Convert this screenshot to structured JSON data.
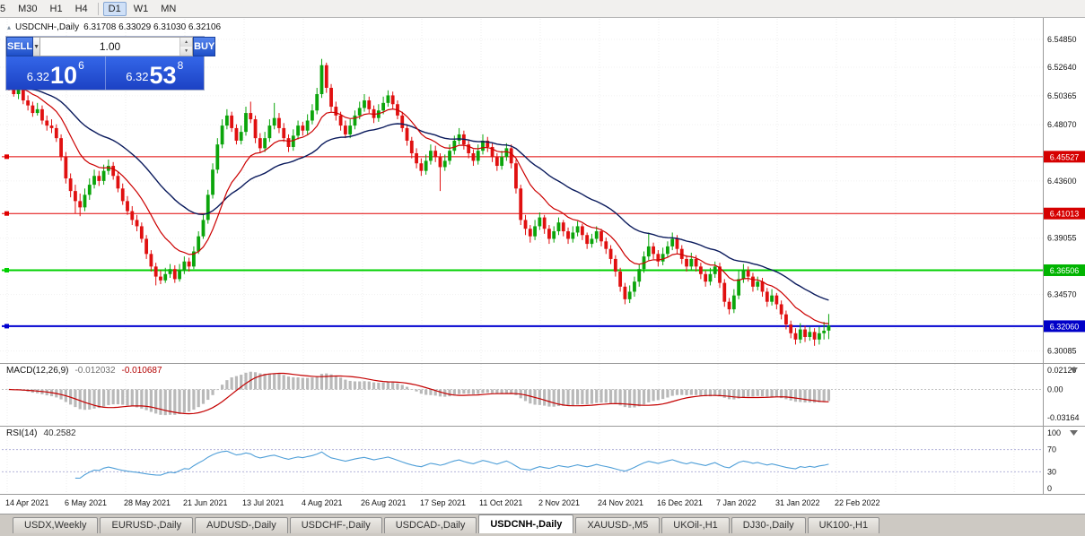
{
  "toolbar": {
    "timeframes": [
      "5",
      "M30",
      "H1",
      "H4",
      "D1",
      "W1",
      "MN"
    ],
    "active": "D1",
    "separator_before": "D1"
  },
  "chart": {
    "header": {
      "symbol": "USDCNH-,Daily",
      "ohlc": "6.31708 6.33029 6.31030 6.32106"
    },
    "price_axis": {
      "labels": [
        {
          "text": "6.54850",
          "value": 6.5485
        },
        {
          "text": "6.52640",
          "value": 6.5264
        },
        {
          "text": "6.50365",
          "value": 6.50365
        },
        {
          "text": "6.48070",
          "value": 6.4807
        },
        {
          "text": "6.43600",
          "value": 6.436
        },
        {
          "text": "6.39055",
          "value": 6.39055
        },
        {
          "text": "6.34570",
          "value": 6.3457
        },
        {
          "text": "6.30085",
          "value": 6.30085
        }
      ],
      "badges": [
        {
          "text": "6.45527",
          "value": 6.45527,
          "color": "#d60000"
        },
        {
          "text": "6.41013",
          "value": 6.41013,
          "color": "#d60000"
        },
        {
          "text": "6.36506",
          "value": 6.36506,
          "color": "#00b400"
        },
        {
          "text": "6.32060",
          "value": 6.3206,
          "color": "#0000c8"
        }
      ]
    },
    "hlines": [
      {
        "value": 6.45527,
        "color": "#e00000",
        "width": 1
      },
      {
        "value": 6.41013,
        "color": "#e00000",
        "width": 1
      },
      {
        "value": 6.36506,
        "color": "#00d000",
        "width": 2
      },
      {
        "value": 6.3206,
        "color": "#0000d0",
        "width": 2
      }
    ],
    "date_axis": [
      "14 Apr 2021",
      "6 May 2021",
      "28 May 2021",
      "21 Jun 2021",
      "13 Jul 2021",
      "4 Aug 2021",
      "26 Aug 2021",
      "17 Sep 2021",
      "11 Oct 2021",
      "2 Nov 2021",
      "24 Nov 2021",
      "16 Dec 2021",
      "7 Jan 2022",
      "31 Jan 2022",
      "22 Feb 2022"
    ],
    "colors": {
      "up": "#0ba50b",
      "down": "#e01010",
      "ma_fast": "#cc0000",
      "ma_slow": "#0a1a5c"
    },
    "candles": [
      [
        6.515,
        6.518,
        6.508,
        6.512
      ],
      [
        6.512,
        6.515,
        6.503,
        6.505
      ],
      [
        6.505,
        6.513,
        6.501,
        6.509
      ],
      [
        6.509,
        6.512,
        6.497,
        6.5
      ],
      [
        6.5,
        6.504,
        6.492,
        6.496
      ],
      [
        6.496,
        6.499,
        6.487,
        6.49
      ],
      [
        6.49,
        6.498,
        6.488,
        6.493
      ],
      [
        6.493,
        6.496,
        6.481,
        6.484
      ],
      [
        6.484,
        6.488,
        6.476,
        6.48
      ],
      [
        6.48,
        6.485,
        6.474,
        6.478
      ],
      [
        6.478,
        6.481,
        6.467,
        6.47
      ],
      [
        6.47,
        6.473,
        6.452,
        6.455
      ],
      [
        6.455,
        6.459,
        6.434,
        6.438
      ],
      [
        6.438,
        6.442,
        6.423,
        6.428
      ],
      [
        6.428,
        6.433,
        6.41,
        6.42
      ],
      [
        6.42,
        6.426,
        6.408,
        6.415
      ],
      [
        6.415,
        6.43,
        6.412,
        6.425
      ],
      [
        6.425,
        6.438,
        6.421,
        6.433
      ],
      [
        6.433,
        6.445,
        6.43,
        6.44
      ],
      [
        6.44,
        6.444,
        6.432,
        6.436
      ],
      [
        6.436,
        6.449,
        6.433,
        6.444
      ],
      [
        6.444,
        6.453,
        6.441,
        6.448
      ],
      [
        6.448,
        6.451,
        6.437,
        6.44
      ],
      [
        6.44,
        6.443,
        6.427,
        6.43
      ],
      [
        6.43,
        6.434,
        6.417,
        6.42
      ],
      [
        6.42,
        6.424,
        6.409,
        6.412
      ],
      [
        6.412,
        6.416,
        6.401,
        6.405
      ],
      [
        6.405,
        6.409,
        6.396,
        6.4
      ],
      [
        6.4,
        6.403,
        6.387,
        6.39
      ],
      [
        6.39,
        6.393,
        6.374,
        6.378
      ],
      [
        6.378,
        6.381,
        6.364,
        6.368
      ],
      [
        6.368,
        6.371,
        6.353,
        6.36
      ],
      [
        6.36,
        6.365,
        6.354,
        6.357
      ],
      [
        6.357,
        6.367,
        6.355,
        6.362
      ],
      [
        6.362,
        6.37,
        6.359,
        6.366
      ],
      [
        6.366,
        6.369,
        6.355,
        6.358
      ],
      [
        6.358,
        6.37,
        6.356,
        6.365
      ],
      [
        6.365,
        6.376,
        6.362,
        6.372
      ],
      [
        6.372,
        6.375,
        6.364,
        6.368
      ],
      [
        6.368,
        6.384,
        6.366,
        6.38
      ],
      [
        6.38,
        6.396,
        6.378,
        6.392
      ],
      [
        6.392,
        6.409,
        6.39,
        6.405
      ],
      [
        6.405,
        6.429,
        6.402,
        6.425
      ],
      [
        6.425,
        6.45,
        6.422,
        6.445
      ],
      [
        6.445,
        6.47,
        6.442,
        6.465
      ],
      [
        6.465,
        6.485,
        6.462,
        6.48
      ],
      [
        6.48,
        6.493,
        6.477,
        6.488
      ],
      [
        6.488,
        6.491,
        6.475,
        6.478
      ],
      [
        6.478,
        6.481,
        6.465,
        6.468
      ],
      [
        6.468,
        6.48,
        6.465,
        6.475
      ],
      [
        6.475,
        6.495,
        6.472,
        6.49
      ],
      [
        6.49,
        6.499,
        6.482,
        6.485
      ],
      [
        6.485,
        6.488,
        6.466,
        6.47
      ],
      [
        6.47,
        6.474,
        6.458,
        6.462
      ],
      [
        6.462,
        6.475,
        6.459,
        6.47
      ],
      [
        6.47,
        6.485,
        6.467,
        6.48
      ],
      [
        6.48,
        6.498,
        6.477,
        6.486
      ],
      [
        6.486,
        6.49,
        6.474,
        6.478
      ],
      [
        6.478,
        6.482,
        6.467,
        6.47
      ],
      [
        6.47,
        6.473,
        6.459,
        6.463
      ],
      [
        6.463,
        6.477,
        6.46,
        6.472
      ],
      [
        6.472,
        6.484,
        6.469,
        6.48
      ],
      [
        6.48,
        6.483,
        6.472,
        6.476
      ],
      [
        6.476,
        6.489,
        6.473,
        6.484
      ],
      [
        6.484,
        6.497,
        6.481,
        6.492
      ],
      [
        6.492,
        6.51,
        6.489,
        6.505
      ],
      [
        6.505,
        6.533,
        6.502,
        6.528
      ],
      [
        6.528,
        6.53,
        6.506,
        6.51
      ],
      [
        6.51,
        6.513,
        6.491,
        6.495
      ],
      [
        6.495,
        6.499,
        6.484,
        6.488
      ],
      [
        6.488,
        6.491,
        6.476,
        6.48
      ],
      [
        6.48,
        6.484,
        6.47,
        6.473
      ],
      [
        6.473,
        6.485,
        6.47,
        6.48
      ],
      [
        6.48,
        6.492,
        6.477,
        6.488
      ],
      [
        6.488,
        6.499,
        6.485,
        6.494
      ],
      [
        6.494,
        6.505,
        6.491,
        6.5
      ],
      [
        6.5,
        6.503,
        6.49,
        6.493
      ],
      [
        6.493,
        6.496,
        6.482,
        6.486
      ],
      [
        6.486,
        6.497,
        6.483,
        6.492
      ],
      [
        6.492,
        6.503,
        6.489,
        6.498
      ],
      [
        6.498,
        6.508,
        6.495,
        6.504
      ],
      [
        6.504,
        6.507,
        6.493,
        6.497
      ],
      [
        6.497,
        6.5,
        6.485,
        6.488
      ],
      [
        6.488,
        6.491,
        6.475,
        6.478
      ],
      [
        6.478,
        6.481,
        6.464,
        6.468
      ],
      [
        6.468,
        6.471,
        6.454,
        6.458
      ],
      [
        6.458,
        6.462,
        6.446,
        6.45
      ],
      [
        6.45,
        6.454,
        6.44,
        6.444
      ],
      [
        6.444,
        6.457,
        6.441,
        6.452
      ],
      [
        6.452,
        6.465,
        6.449,
        6.46
      ],
      [
        6.46,
        6.464,
        6.451,
        6.455
      ],
      [
        6.455,
        6.458,
        6.428,
        6.447
      ],
      [
        6.447,
        6.457,
        6.444,
        6.452
      ],
      [
        6.452,
        6.465,
        6.449,
        6.46
      ],
      [
        6.46,
        6.472,
        6.457,
        6.468
      ],
      [
        6.468,
        6.478,
        6.465,
        6.473
      ],
      [
        6.473,
        6.476,
        6.461,
        6.465
      ],
      [
        6.465,
        6.468,
        6.454,
        6.458
      ],
      [
        6.458,
        6.461,
        6.448,
        6.452
      ],
      [
        6.452,
        6.465,
        6.449,
        6.46
      ],
      [
        6.46,
        6.473,
        6.457,
        6.468
      ],
      [
        6.468,
        6.471,
        6.459,
        6.463
      ],
      [
        6.463,
        6.466,
        6.451,
        6.455
      ],
      [
        6.455,
        6.458,
        6.444,
        6.448
      ],
      [
        6.448,
        6.46,
        6.445,
        6.455
      ],
      [
        6.455,
        6.466,
        6.452,
        6.462
      ],
      [
        6.462,
        6.465,
        6.446,
        6.45
      ],
      [
        6.45,
        6.453,
        6.426,
        6.43
      ],
      [
        6.43,
        6.433,
        6.401,
        6.405
      ],
      [
        6.405,
        6.409,
        6.393,
        6.398
      ],
      [
        6.398,
        6.401,
        6.387,
        6.392
      ],
      [
        6.392,
        6.405,
        6.389,
        6.4
      ],
      [
        6.4,
        6.411,
        6.397,
        6.407
      ],
      [
        6.407,
        6.409,
        6.394,
        6.398
      ],
      [
        6.398,
        6.401,
        6.386,
        6.39
      ],
      [
        6.39,
        6.4,
        6.387,
        6.396
      ],
      [
        6.396,
        6.407,
        6.393,
        6.403
      ],
      [
        6.403,
        6.405,
        6.392,
        6.396
      ],
      [
        6.396,
        6.399,
        6.386,
        6.39
      ],
      [
        6.39,
        6.4,
        6.387,
        6.395
      ],
      [
        6.395,
        6.404,
        6.392,
        6.4
      ],
      [
        6.4,
        6.402,
        6.389,
        6.393
      ],
      [
        6.393,
        6.395,
        6.382,
        6.386
      ],
      [
        6.386,
        6.394,
        6.383,
        6.39
      ],
      [
        6.39,
        6.4,
        6.387,
        6.396
      ],
      [
        6.396,
        6.398,
        6.384,
        6.388
      ],
      [
        6.388,
        6.391,
        6.378,
        6.382
      ],
      [
        6.382,
        6.385,
        6.37,
        6.374
      ],
      [
        6.374,
        6.377,
        6.36,
        6.364
      ],
      [
        6.364,
        6.367,
        6.348,
        6.352
      ],
      [
        6.352,
        6.355,
        6.338,
        6.342
      ],
      [
        6.342,
        6.353,
        6.339,
        6.348
      ],
      [
        6.348,
        6.36,
        6.344,
        6.356
      ],
      [
        6.356,
        6.37,
        6.352,
        6.366
      ],
      [
        6.366,
        6.38,
        6.363,
        6.376
      ],
      [
        6.376,
        6.395,
        6.373,
        6.384
      ],
      [
        6.384,
        6.387,
        6.374,
        6.378
      ],
      [
        6.378,
        6.381,
        6.368,
        6.372
      ],
      [
        6.372,
        6.383,
        6.369,
        6.378
      ],
      [
        6.378,
        6.388,
        6.375,
        6.384
      ],
      [
        6.384,
        6.395,
        6.381,
        6.39
      ],
      [
        6.39,
        6.393,
        6.378,
        6.382
      ],
      [
        6.382,
        6.385,
        6.37,
        6.374
      ],
      [
        6.374,
        6.377,
        6.364,
        6.368
      ],
      [
        6.368,
        6.379,
        6.365,
        6.374
      ],
      [
        6.374,
        6.377,
        6.364,
        6.368
      ],
      [
        6.368,
        6.371,
        6.358,
        6.362
      ],
      [
        6.362,
        6.365,
        6.352,
        6.356
      ],
      [
        6.356,
        6.367,
        6.353,
        6.362
      ],
      [
        6.362,
        6.372,
        6.359,
        6.368
      ],
      [
        6.368,
        6.371,
        6.351,
        6.355
      ],
      [
        6.355,
        6.358,
        6.336,
        6.34
      ],
      [
        6.34,
        6.343,
        6.33,
        6.334
      ],
      [
        6.334,
        6.35,
        6.331,
        6.345
      ],
      [
        6.345,
        6.365,
        6.342,
        6.358
      ],
      [
        6.358,
        6.37,
        6.355,
        6.365
      ],
      [
        6.365,
        6.368,
        6.356,
        6.36
      ],
      [
        6.36,
        6.363,
        6.348,
        6.352
      ],
      [
        6.352,
        6.36,
        6.349,
        6.356
      ],
      [
        6.356,
        6.359,
        6.344,
        6.348
      ],
      [
        6.348,
        6.351,
        6.336,
        6.34
      ],
      [
        6.34,
        6.35,
        6.337,
        6.345
      ],
      [
        6.345,
        6.347,
        6.334,
        6.338
      ],
      [
        6.338,
        6.341,
        6.326,
        6.33
      ],
      [
        6.33,
        6.333,
        6.318,
        6.322
      ],
      [
        6.322,
        6.325,
        6.311,
        6.315
      ],
      [
        6.315,
        6.319,
        6.306,
        6.31
      ],
      [
        6.31,
        6.323,
        6.307,
        6.318
      ],
      [
        6.318,
        6.321,
        6.308,
        6.312
      ],
      [
        6.312,
        6.32,
        6.309,
        6.316
      ],
      [
        6.316,
        6.319,
        6.305,
        6.31
      ],
      [
        6.31,
        6.32,
        6.306,
        6.315
      ],
      [
        6.315,
        6.324,
        6.31,
        6.317
      ],
      [
        6.31708,
        6.33029,
        6.3103,
        6.32106
      ]
    ]
  },
  "trade_panel": {
    "sell_label": "SELL",
    "buy_label": "BUY",
    "volume": "1.00",
    "sell_price": {
      "prefix": "6.32",
      "big": "10",
      "sup": "6"
    },
    "buy_price": {
      "prefix": "6.32",
      "big": "53",
      "sup": "8"
    }
  },
  "macd": {
    "name": "MACD(12,26,9)",
    "main_value": "-0.012032",
    "signal_value": "-0.010687",
    "axis": [
      {
        "text": "0.02129",
        "value": 0.02129
      },
      {
        "text": "0.00",
        "value": 0
      },
      {
        "text": "-0.03164",
        "value": -0.03164
      }
    ],
    "colors": {
      "histogram": "#b9b9b9",
      "signal": "#c40000"
    }
  },
  "rsi": {
    "name": "RSI(14)",
    "value": "40.2582",
    "axis": [
      {
        "text": "100",
        "value": 100
      },
      {
        "text": "70",
        "value": 70
      },
      {
        "text": "30",
        "value": 30
      },
      {
        "text": "0",
        "value": 0
      }
    ],
    "levels": [
      70,
      30
    ],
    "color": "#4f9fd8"
  },
  "tabs": {
    "items": [
      "USDX,Weekly",
      "EURUSD-,Daily",
      "AUDUSD-,Daily",
      "USDCHF-,Daily",
      "USDCAD-,Daily",
      "USDCNH-,Daily",
      "XAUUSD-,M5",
      "UKOil-,H1",
      "DJ30-,Daily",
      "UK100-,H1"
    ],
    "active_index": 5
  }
}
